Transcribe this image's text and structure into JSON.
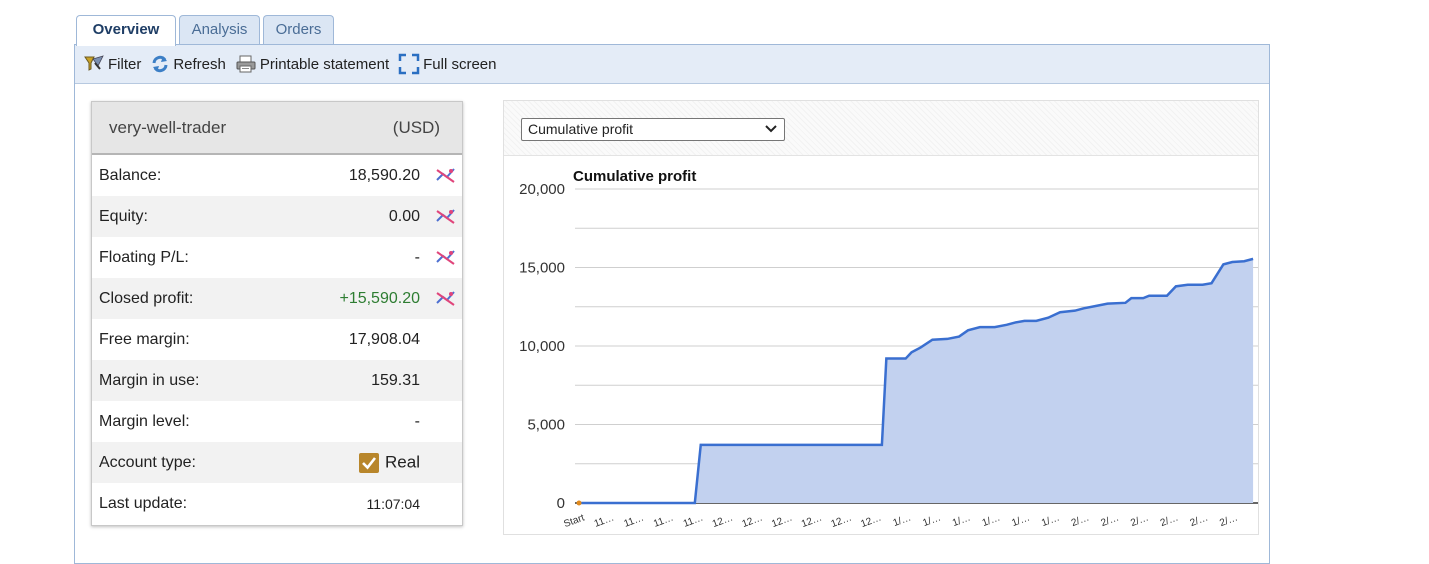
{
  "tabs": [
    {
      "label": "Overview",
      "active": true
    },
    {
      "label": "Analysis",
      "active": false
    },
    {
      "label": "Orders",
      "active": false
    }
  ],
  "toolbar": {
    "filter_label": "Filter",
    "refresh_label": "Refresh",
    "print_label": "Printable statement",
    "fullscreen_label": "Full screen"
  },
  "account": {
    "name": "very-well-trader",
    "currency": "(USD)",
    "rows": [
      {
        "label": "Balance:",
        "value": "18,590.20"
      },
      {
        "label": "Equity:",
        "value": "0.00"
      },
      {
        "label": "Floating P/L:",
        "value": "-"
      },
      {
        "label": "Closed profit:",
        "value": "+15,590.20"
      },
      {
        "label": "Free margin:",
        "value": "17,908.04"
      },
      {
        "label": "Margin in use:",
        "value": "159.31"
      },
      {
        "label": "Margin level:",
        "value": "-"
      },
      {
        "label": "Account type:",
        "value": "Real"
      },
      {
        "label": "Last update:",
        "value": "11:07:04"
      }
    ]
  },
  "chart_selector": {
    "selected": "Cumulative profit"
  },
  "chart_data": {
    "type": "area",
    "title": "Cumulative profit",
    "xlabel": "",
    "ylabel": "",
    "ylim": [
      0,
      20000
    ],
    "yticks": [
      "0",
      "5,000",
      "10,000",
      "15,000",
      "20,000"
    ],
    "x": [
      "Start",
      "11…",
      "11…",
      "11…",
      "11…",
      "12…",
      "12…",
      "12…",
      "12…",
      "12…",
      "12…",
      "1/…",
      "1/…",
      "1/…",
      "1/…",
      "1/…",
      "1/…",
      "2/…",
      "2/…",
      "2/…",
      "2/…",
      "2/…",
      "2/…"
    ],
    "series": [
      {
        "color": "#3a6fd0",
        "fill": "#c2d1ef",
        "points": [
          [
            0,
            0
          ],
          [
            1,
            0
          ],
          [
            2,
            0
          ],
          [
            3,
            0
          ],
          [
            3.9,
            0
          ],
          [
            4.1,
            3700
          ],
          [
            5,
            3700
          ],
          [
            6,
            3700
          ],
          [
            7,
            3700
          ],
          [
            8,
            3700
          ],
          [
            9,
            3700
          ],
          [
            10,
            3700
          ],
          [
            10.2,
            3700
          ],
          [
            10.35,
            9200
          ],
          [
            11,
            9200
          ],
          [
            11.2,
            9600
          ],
          [
            11.5,
            9900
          ],
          [
            11.9,
            10400
          ],
          [
            12.4,
            10450
          ],
          [
            12.8,
            10600
          ],
          [
            13.1,
            11000
          ],
          [
            13.5,
            11200
          ],
          [
            14,
            11200
          ],
          [
            14.4,
            11350
          ],
          [
            14.7,
            11500
          ],
          [
            15,
            11600
          ],
          [
            15.4,
            11600
          ],
          [
            15.8,
            11800
          ],
          [
            16.2,
            12150
          ],
          [
            16.7,
            12250
          ],
          [
            17,
            12400
          ],
          [
            17.4,
            12550
          ],
          [
            17.8,
            12700
          ],
          [
            18.4,
            12750
          ],
          [
            18.6,
            13050
          ],
          [
            19,
            13050
          ],
          [
            19.2,
            13200
          ],
          [
            19.8,
            13200
          ],
          [
            20.1,
            13800
          ],
          [
            20.5,
            13900
          ],
          [
            21,
            13900
          ],
          [
            21.3,
            14000
          ],
          [
            21.7,
            15200
          ],
          [
            22,
            15350
          ],
          [
            22.4,
            15400
          ],
          [
            22.7,
            15550
          ]
        ]
      }
    ],
    "grid": true,
    "legend": "none"
  }
}
